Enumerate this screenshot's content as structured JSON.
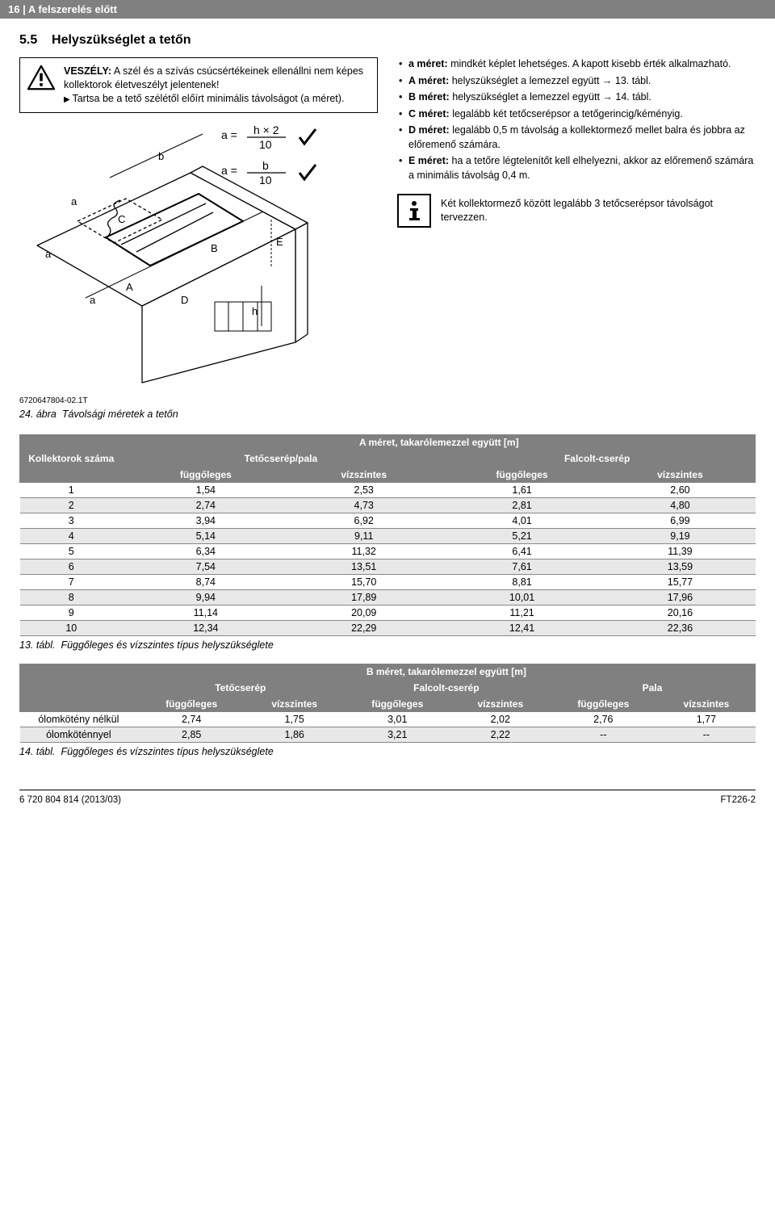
{
  "header": {
    "page_num": "16",
    "section": "A felszerelés előtt"
  },
  "section": {
    "number": "5.5",
    "title": "Helyszükséglet a tetőn"
  },
  "warning": {
    "title": "VESZÉLY:",
    "line1": "A szél és a szívás csúcsértékeinek ellenállni nem képes kollektorok életveszélyt jelentenek!",
    "line2": "Tartsa be a tető szélétől előírt minimális távolságot (a méret)."
  },
  "diagram": {
    "formula1_lhs": "a =",
    "formula1_rhs_top": "h × 2",
    "formula1_rhs_bot": "10",
    "formula2_lhs": "a =",
    "formula2_rhs_top": "b",
    "formula2_rhs_bot": "10",
    "code": "6720647804-02.1T",
    "caption_num": "24. ábra",
    "caption_text": "Távolsági méretek a tetőn"
  },
  "bullets": [
    {
      "b": "a méret:",
      "t": "mindkét képlet lehetséges. A kapott kisebb érték alkalmazható."
    },
    {
      "b": "A méret:",
      "t": "helyszükséglet a lemezzel együtt → 13. tábl."
    },
    {
      "b": "B méret:",
      "t": "helyszükséglet a lemezzel együtt → 14. tábl."
    },
    {
      "b": "C méret:",
      "t": "legalább két tetőcserépsor a tetőgerincig/kéményig."
    },
    {
      "b": "D méret:",
      "t": "legalább 0,5 m távolság a kollektormező mellet balra és jobbra az előremenő számára."
    },
    {
      "b": "E méret:",
      "t": "ha a tetőre légtelenítőt kell elhelyezni, akkor az előremenő számára a minimális távolság 0,4 m."
    }
  ],
  "info": "Két kollektormező között legalább 3 tetőcserépsor távolságot tervezzen.",
  "table13": {
    "title": "A méret, takarólemezzel együtt [m]",
    "col0": "Kollektorok száma",
    "group1": "Tetőcserép/pala",
    "group2": "Falcolt-cserép",
    "sub_f": "függőleges",
    "sub_v": "vízszintes",
    "rows": [
      [
        "1",
        "1,54",
        "2,53",
        "1,61",
        "2,60"
      ],
      [
        "2",
        "2,74",
        "4,73",
        "2,81",
        "4,80"
      ],
      [
        "3",
        "3,94",
        "6,92",
        "4,01",
        "6,99"
      ],
      [
        "4",
        "5,14",
        "9,11",
        "5,21",
        "9,19"
      ],
      [
        "5",
        "6,34",
        "11,32",
        "6,41",
        "11,39"
      ],
      [
        "6",
        "7,54",
        "13,51",
        "7,61",
        "13,59"
      ],
      [
        "7",
        "8,74",
        "15,70",
        "8,81",
        "15,77"
      ],
      [
        "8",
        "9,94",
        "17,89",
        "10,01",
        "17,96"
      ],
      [
        "9",
        "11,14",
        "20,09",
        "11,21",
        "20,16"
      ],
      [
        "10",
        "12,34",
        "22,29",
        "12,41",
        "22,36"
      ]
    ],
    "caption_num": "13. tábl.",
    "caption_text": "Függőleges és vízszintes típus helyszükséglete"
  },
  "table14": {
    "title": "B méret, takarólemezzel együtt [m]",
    "group1": "Tetőcserép",
    "group2": "Falcolt-cserép",
    "group3": "Pala",
    "sub_f": "függőleges",
    "sub_v": "vízszintes",
    "row_labels": [
      "ólomkötény nélkül",
      "ólomköténnyel"
    ],
    "rows": [
      [
        "2,74",
        "1,75",
        "3,01",
        "2,02",
        "2,76",
        "1,77"
      ],
      [
        "2,85",
        "1,86",
        "3,21",
        "2,22",
        "--",
        "--"
      ]
    ],
    "caption_num": "14. tábl.",
    "caption_text": "Függőleges és vízszintes típus helyszükséglete"
  },
  "footer": {
    "left": "6 720 804 814 (2013/03)",
    "right": "FT226-2"
  },
  "colors": {
    "header_bg": "#808080",
    "row_alt": "#e8e8e8",
    "text": "#000000"
  }
}
